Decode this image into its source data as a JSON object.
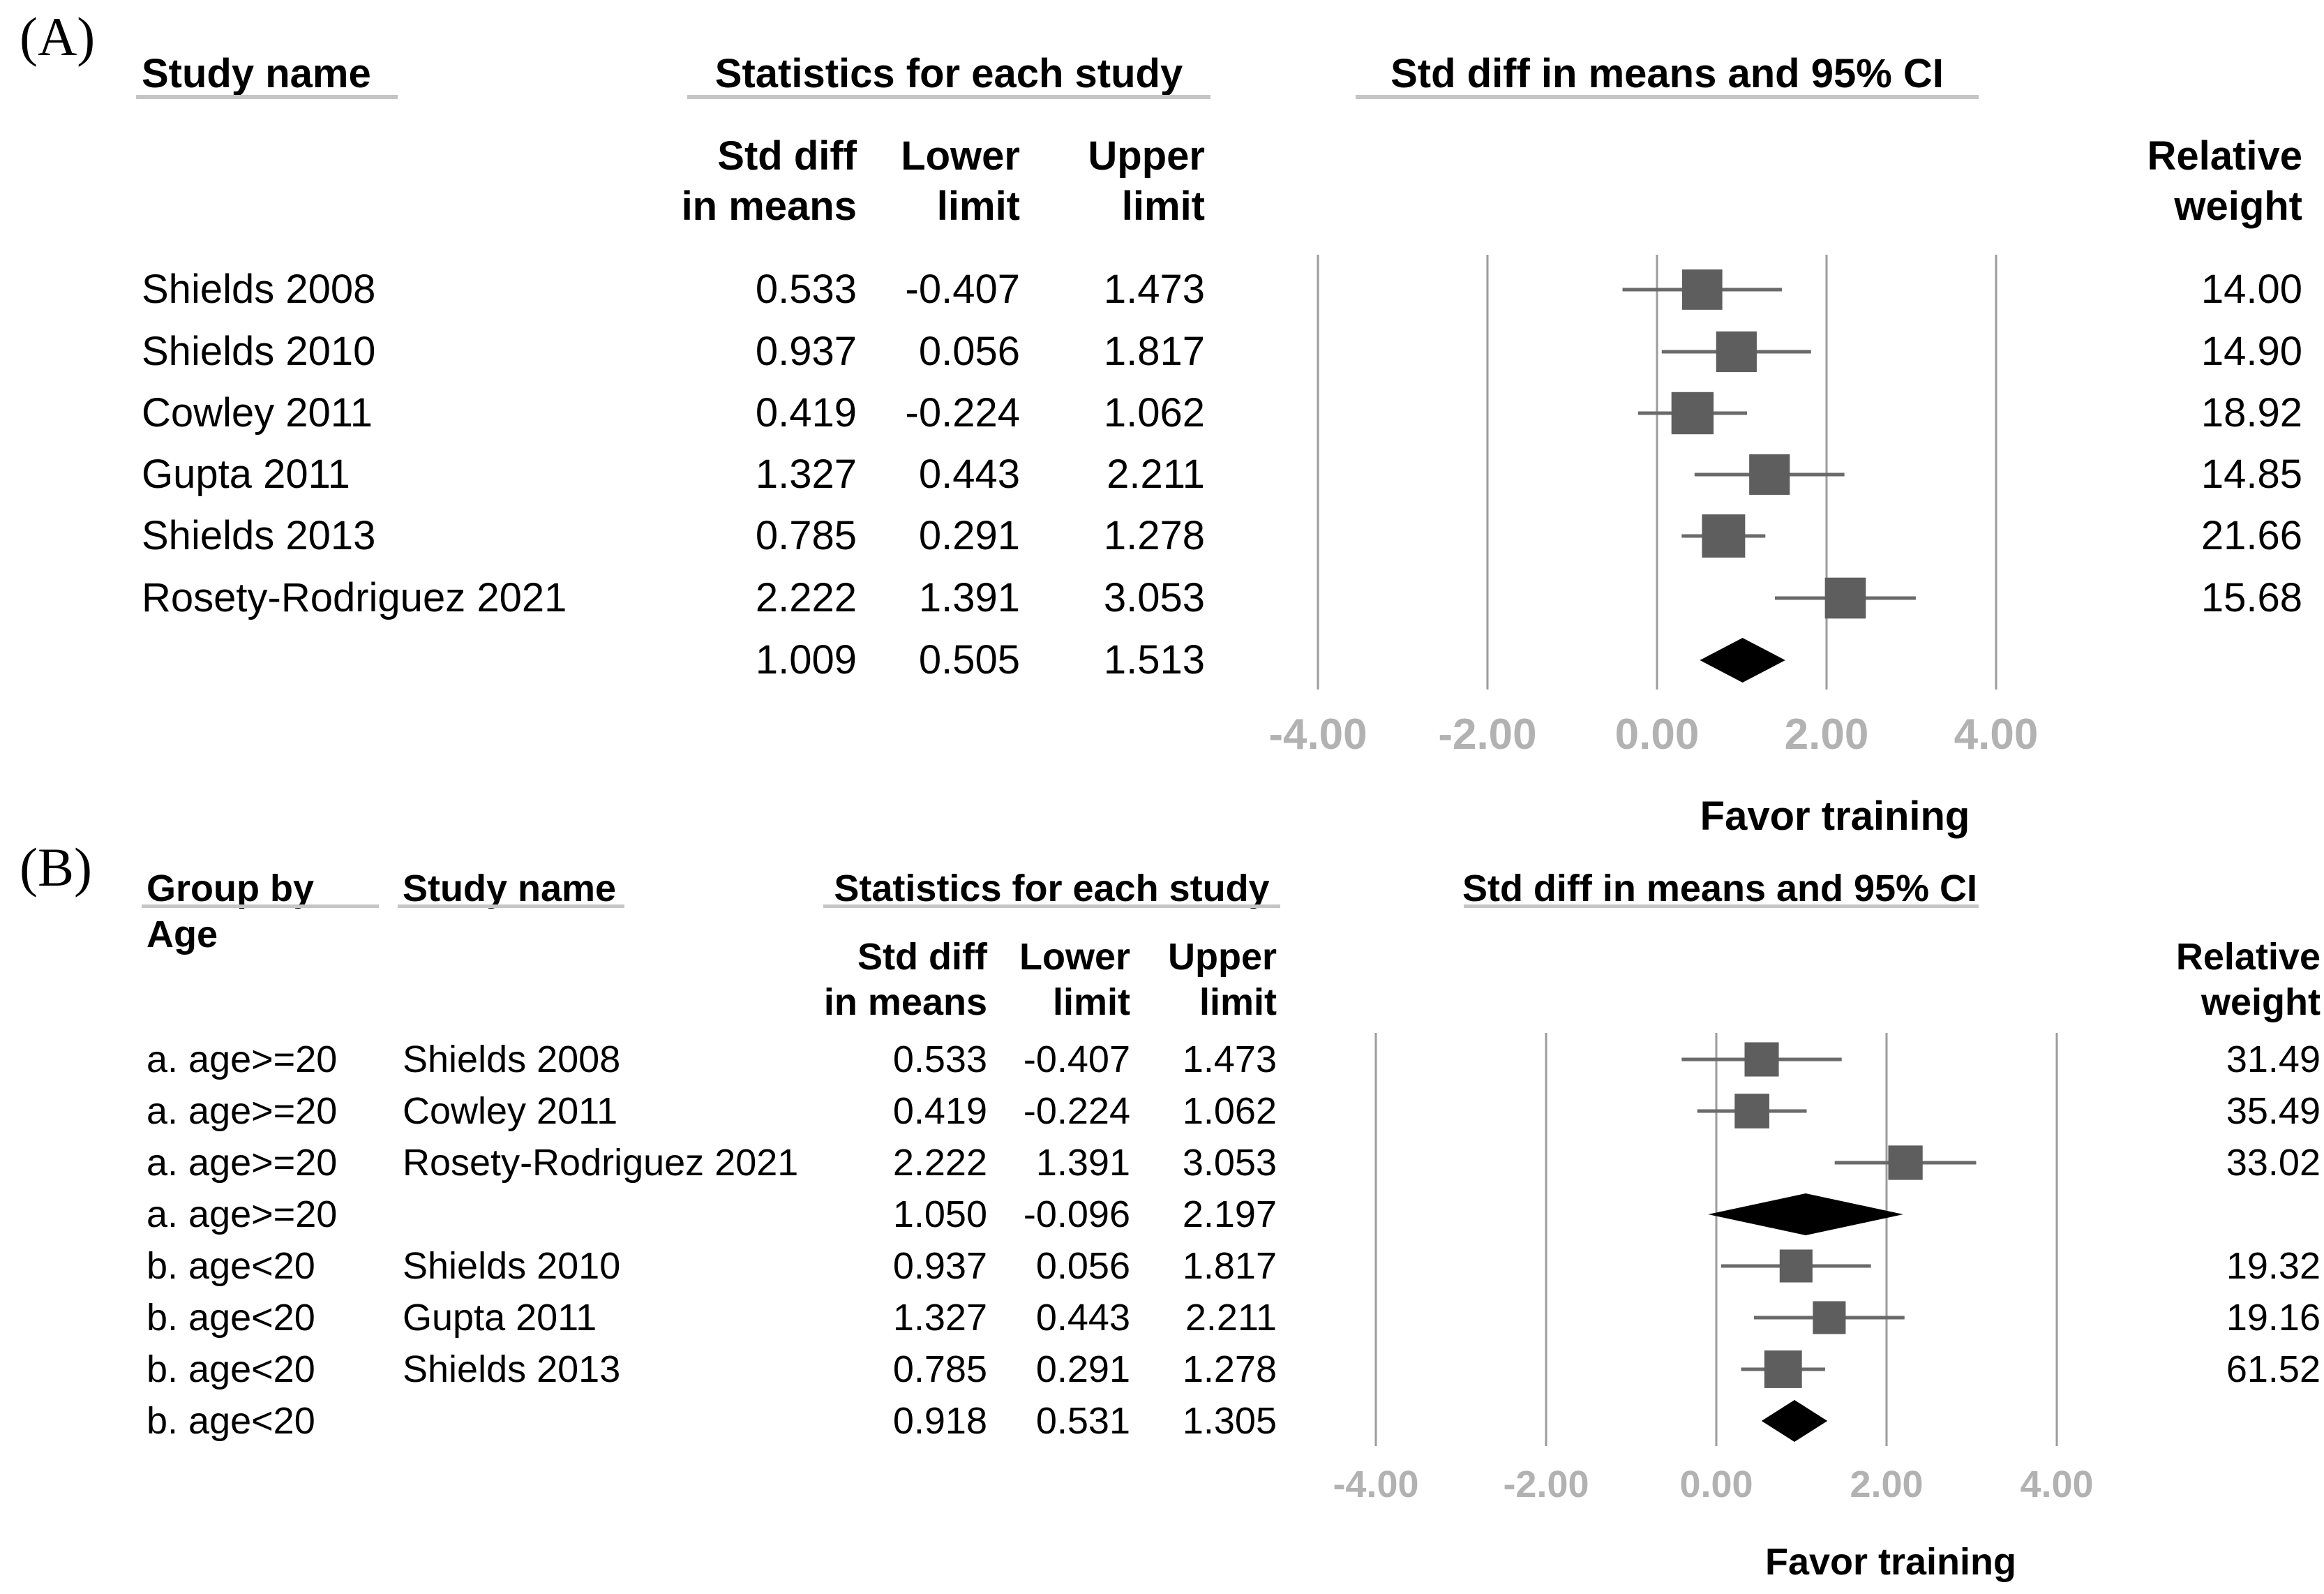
{
  "figure_colors": {
    "square": "#5e5e5e",
    "ci_line": "#6a6a6a",
    "gridline": "#9c9c9c",
    "diamond": "#000000",
    "axis_label": "#b2b2b2",
    "underline": "#c5c5c5",
    "text": "#000000"
  },
  "chart_data": [
    {
      "type": "forest",
      "panel_label": "(A)",
      "title": "Std diff in means and 95% CI",
      "col_headers": {
        "study": "Study name",
        "stats": "Statistics for each study",
        "effect": [
          "Std diff",
          "in means"
        ],
        "lower": [
          "Lower",
          "limit"
        ],
        "upper": [
          "Upper",
          "limit"
        ],
        "weight": [
          "Relative",
          "weight"
        ]
      },
      "rows": [
        {
          "kind": "study",
          "name": "Shields 2008",
          "est": 0.533,
          "lo": -0.407,
          "hi": 1.473,
          "weight": 14.0
        },
        {
          "kind": "study",
          "name": "Shields 2010",
          "est": 0.937,
          "lo": 0.056,
          "hi": 1.817,
          "weight": 14.9
        },
        {
          "kind": "study",
          "name": "Cowley 2011",
          "est": 0.419,
          "lo": -0.224,
          "hi": 1.062,
          "weight": 18.92
        },
        {
          "kind": "study",
          "name": "Gupta 2011",
          "est": 1.327,
          "lo": 0.443,
          "hi": 2.211,
          "weight": 14.85
        },
        {
          "kind": "study",
          "name": "Shields 2013",
          "est": 0.785,
          "lo": 0.291,
          "hi": 1.278,
          "weight": 21.66
        },
        {
          "kind": "study",
          "name": "Rosety-Rodriguez 2021",
          "est": 2.222,
          "lo": 1.391,
          "hi": 3.053,
          "weight": 15.68
        },
        {
          "kind": "pooled",
          "name": "",
          "est": 1.009,
          "lo": 0.505,
          "hi": 1.513
        }
      ],
      "x_ticks": [
        -4,
        -2,
        0,
        2,
        4
      ],
      "x_tick_labels": [
        "-4.00",
        "-2.00",
        "0.00",
        "2.00",
        "4.00"
      ],
      "x_axis_label": "Favor training",
      "xlim": [
        -4.8,
        5.2
      ],
      "grid": true
    },
    {
      "type": "forest",
      "panel_label": "(B)",
      "title": "Std diff in means and 95% CI",
      "col_headers": {
        "group": [
          "Group by",
          "Age"
        ],
        "study": "Study name",
        "stats": "Statistics for each study",
        "effect": [
          "Std diff",
          "in means"
        ],
        "lower": [
          "Lower",
          "limit"
        ],
        "upper": [
          "Upper",
          "limit"
        ],
        "weight": [
          "Relative",
          "weight"
        ]
      },
      "rows": [
        {
          "kind": "study",
          "group": "a. age>=20",
          "name": "Shields 2008",
          "est": 0.533,
          "lo": -0.407,
          "hi": 1.473,
          "weight": 31.49
        },
        {
          "kind": "study",
          "group": "a. age>=20",
          "name": "Cowley 2011",
          "est": 0.419,
          "lo": -0.224,
          "hi": 1.062,
          "weight": 35.49
        },
        {
          "kind": "study",
          "group": "a. age>=20",
          "name": "Rosety-Rodriguez 2021",
          "est": 2.222,
          "lo": 1.391,
          "hi": 3.053,
          "weight": 33.02
        },
        {
          "kind": "pooled",
          "group": "a. age>=20",
          "name": "",
          "est": 1.05,
          "lo": -0.096,
          "hi": 2.197
        },
        {
          "kind": "study",
          "group": "b. age<20",
          "name": "Shields 2010",
          "est": 0.937,
          "lo": 0.056,
          "hi": 1.817,
          "weight": 19.32
        },
        {
          "kind": "study",
          "group": "b. age<20",
          "name": "Gupta 2011",
          "est": 1.327,
          "lo": 0.443,
          "hi": 2.211,
          "weight": 19.16
        },
        {
          "kind": "study",
          "group": "b. age<20",
          "name": "Shields 2013",
          "est": 0.785,
          "lo": 0.291,
          "hi": 1.278,
          "weight": 61.52
        },
        {
          "kind": "pooled",
          "group": "b. age<20",
          "name": "",
          "est": 0.918,
          "lo": 0.531,
          "hi": 1.305
        }
      ],
      "x_ticks": [
        -4,
        -2,
        0,
        2,
        4
      ],
      "x_tick_labels": [
        "-4.00",
        "-2.00",
        "0.00",
        "2.00",
        "4.00"
      ],
      "x_axis_label": "Favor training",
      "xlim": [
        -4.8,
        5.2
      ],
      "grid": true
    }
  ]
}
